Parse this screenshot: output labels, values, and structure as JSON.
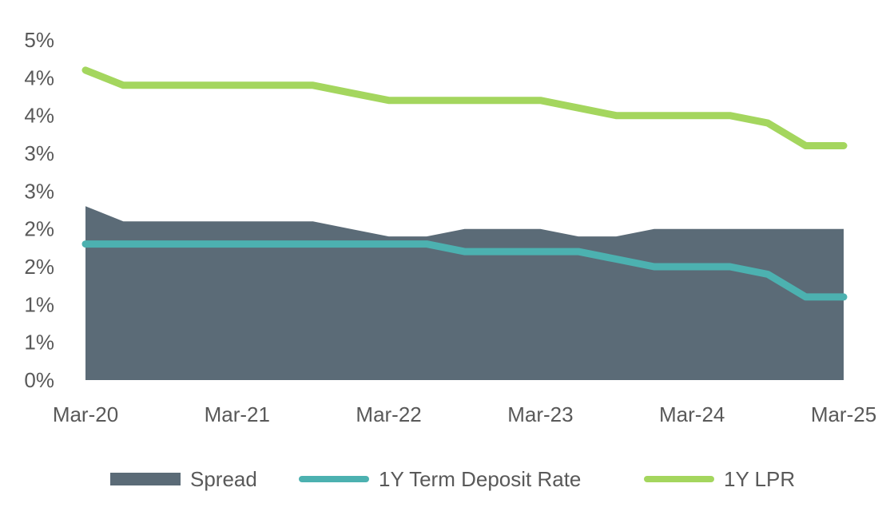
{
  "chart_data": {
    "type": "area",
    "x_tick_labels": [
      "Mar-20",
      "Mar-21",
      "Mar-22",
      "Mar-23",
      "Mar-24",
      "Mar-25"
    ],
    "y_tick_labels": [
      "0%",
      "1%",
      "1%",
      "2%",
      "2%",
      "3%",
      "3%",
      "4%",
      "4%",
      "5%"
    ],
    "ylim": [
      0,
      4.5
    ],
    "grid": false,
    "legend_position": "bottom",
    "x": [
      "2020-03",
      "2020-06",
      "2020-09",
      "2020-12",
      "2021-03",
      "2021-06",
      "2021-09",
      "2021-12",
      "2022-03",
      "2022-06",
      "2022-09",
      "2022-12",
      "2023-03",
      "2023-06",
      "2023-09",
      "2023-12",
      "2024-03",
      "2024-06",
      "2024-09",
      "2024-12",
      "2025-03"
    ],
    "series": [
      {
        "name": "Spread",
        "kind": "area",
        "color": "#5b6b77",
        "values": [
          2.3,
          2.1,
          2.1,
          2.1,
          2.1,
          2.1,
          2.1,
          2.0,
          1.9,
          1.9,
          2.0,
          2.0,
          2.0,
          1.9,
          1.9,
          2.0,
          2.0,
          2.0,
          2.0,
          2.0,
          2.0
        ]
      },
      {
        "name": "1Y Term Deposit Rate",
        "kind": "line",
        "color": "#4cb1b0",
        "values": [
          1.8,
          1.8,
          1.8,
          1.8,
          1.8,
          1.8,
          1.8,
          1.8,
          1.8,
          1.8,
          1.7,
          1.7,
          1.7,
          1.7,
          1.6,
          1.5,
          1.5,
          1.5,
          1.4,
          1.1,
          1.1
        ]
      },
      {
        "name": "1Y LPR",
        "kind": "line",
        "color": "#a4d65e",
        "values": [
          4.1,
          3.9,
          3.9,
          3.9,
          3.9,
          3.9,
          3.9,
          3.8,
          3.7,
          3.7,
          3.7,
          3.7,
          3.7,
          3.6,
          3.5,
          3.5,
          3.5,
          3.5,
          3.4,
          3.1,
          3.1
        ]
      }
    ]
  }
}
